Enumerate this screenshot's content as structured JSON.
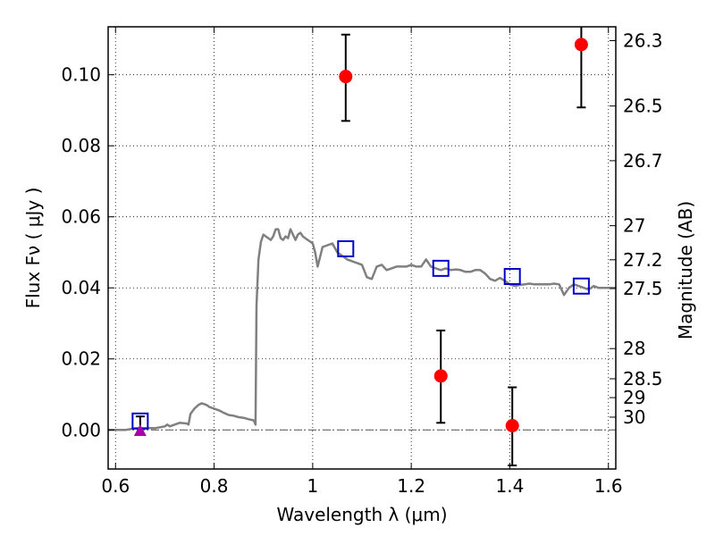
{
  "chart_data": {
    "type": "scatter",
    "xlabel": "Wavelength  λ (μm)",
    "ylabel": "Flux  Fν  ( μJy )",
    "ylabel_right": "Magnitude (AB)",
    "xlim": [
      0.585,
      1.615
    ],
    "ylim": [
      -0.011,
      0.1135
    ],
    "grid": true,
    "x_ticks": [
      {
        "value": 0.6,
        "label": "0.6"
      },
      {
        "value": 0.8,
        "label": "0.8"
      },
      {
        "value": 1.0,
        "label": "1"
      },
      {
        "value": 1.2,
        "label": "1.2"
      },
      {
        "value": 1.4,
        "label": "1.4"
      },
      {
        "value": 1.6,
        "label": "1.6"
      }
    ],
    "y_ticks": [
      {
        "value": 0.0,
        "label": "0.00"
      },
      {
        "value": 0.02,
        "label": "0.02"
      },
      {
        "value": 0.04,
        "label": "0.04"
      },
      {
        "value": 0.06,
        "label": "0.06"
      },
      {
        "value": 0.08,
        "label": "0.08"
      },
      {
        "value": 0.1,
        "label": "0.10"
      }
    ],
    "right_ticks": [
      {
        "flux": 0.1096,
        "label": "26.3"
      },
      {
        "flux": 0.0912,
        "label": "26.5"
      },
      {
        "flux": 0.0758,
        "label": "26.7"
      },
      {
        "flux": 0.0575,
        "label": "27"
      },
      {
        "flux": 0.0479,
        "label": "27.2"
      },
      {
        "flux": 0.0398,
        "label": "27.5"
      },
      {
        "flux": 0.0229,
        "label": "28"
      },
      {
        "flux": 0.0144,
        "label": "28.5"
      },
      {
        "flux": 0.0091,
        "label": "29"
      },
      {
        "flux": 0.0036,
        "label": "30"
      }
    ],
    "series": [
      {
        "kind": "line",
        "color": "#808080",
        "x": [
          0.585,
          0.6,
          0.62,
          0.64,
          0.66,
          0.68,
          0.7,
          0.705,
          0.71,
          0.72,
          0.73,
          0.745,
          0.748,
          0.752,
          0.76,
          0.768,
          0.775,
          0.785,
          0.79,
          0.8,
          0.81,
          0.82,
          0.83,
          0.84,
          0.85,
          0.86,
          0.87,
          0.88,
          0.882,
          0.884,
          0.886,
          0.89,
          0.895,
          0.9,
          0.91,
          0.915,
          0.92,
          0.925,
          0.93,
          0.935,
          0.94,
          0.945,
          0.95,
          0.955,
          0.96,
          0.965,
          0.97,
          0.975,
          0.98,
          0.985,
          0.99,
          0.995,
          1.0,
          1.005,
          1.01,
          1.02,
          1.03,
          1.04,
          1.05,
          1.06,
          1.07,
          1.08,
          1.09,
          1.1,
          1.11,
          1.12,
          1.13,
          1.14,
          1.15,
          1.16,
          1.17,
          1.18,
          1.19,
          1.2,
          1.21,
          1.22,
          1.23,
          1.24,
          1.25,
          1.26,
          1.27,
          1.28,
          1.29,
          1.3,
          1.31,
          1.32,
          1.33,
          1.34,
          1.35,
          1.36,
          1.37,
          1.38,
          1.39,
          1.4,
          1.41,
          1.42,
          1.43,
          1.44,
          1.45,
          1.46,
          1.47,
          1.48,
          1.49,
          1.5,
          1.51,
          1.52,
          1.53,
          1.54,
          1.55,
          1.56,
          1.57,
          1.58,
          1.59,
          1.6,
          1.615
        ],
        "y": [
          0.0,
          0.0,
          0.0,
          0.0005,
          0.0005,
          0.0005,
          0.001,
          0.0015,
          0.001,
          0.0015,
          0.002,
          0.0018,
          0.0015,
          0.0045,
          0.006,
          0.007,
          0.0075,
          0.007,
          0.0065,
          0.006,
          0.0055,
          0.0048,
          0.0042,
          0.004,
          0.0036,
          0.0034,
          0.003,
          0.0027,
          0.0022,
          0.0015,
          0.035,
          0.048,
          0.053,
          0.055,
          0.054,
          0.0535,
          0.0545,
          0.0565,
          0.0565,
          0.054,
          0.0535,
          0.0545,
          0.054,
          0.0565,
          0.055,
          0.0535,
          0.055,
          0.0555,
          0.0545,
          0.054,
          0.0535,
          0.053,
          0.0525,
          0.05,
          0.046,
          0.0515,
          0.052,
          0.0525,
          0.05,
          0.049,
          0.048,
          0.0475,
          0.047,
          0.0465,
          0.043,
          0.0425,
          0.046,
          0.0465,
          0.045,
          0.0455,
          0.046,
          0.046,
          0.046,
          0.0465,
          0.046,
          0.046,
          0.048,
          0.046,
          0.0455,
          0.045,
          0.0455,
          0.045,
          0.0452,
          0.045,
          0.0445,
          0.0445,
          0.045,
          0.045,
          0.044,
          0.0425,
          0.042,
          0.0428,
          0.042,
          0.041,
          0.0405,
          0.0408,
          0.041,
          0.0412,
          0.041,
          0.041,
          0.041,
          0.041,
          0.0412,
          0.041,
          0.038,
          0.04,
          0.041,
          0.0405,
          0.04,
          0.0395,
          0.0405,
          0.04,
          0.04,
          0.04,
          0.04
        ]
      },
      {
        "kind": "points",
        "marker": "circle",
        "color": "#ff0000",
        "x": [
          1.067,
          1.26,
          1.405,
          1.545
        ],
        "y": [
          0.0995,
          0.0152,
          0.0012,
          0.1085
        ],
        "err_low": [
          0.0125,
          0.0132,
          0.0112,
          0.0177
        ],
        "err_high": [
          0.0118,
          0.0128,
          0.0108,
          0.0065
        ]
      },
      {
        "kind": "points",
        "marker": "open-square",
        "color": "#0000cc",
        "x": [
          0.65,
          1.067,
          1.26,
          1.405,
          1.545
        ],
        "y": [
          0.0025,
          0.051,
          0.0455,
          0.0432,
          0.0405
        ]
      },
      {
        "kind": "points",
        "marker": "triangle",
        "color": "#aa00aa",
        "x": [
          0.65
        ],
        "y": [
          -0.0002
        ],
        "err_low": [
          0.001
        ],
        "err_high": [
          0.004
        ]
      }
    ]
  }
}
